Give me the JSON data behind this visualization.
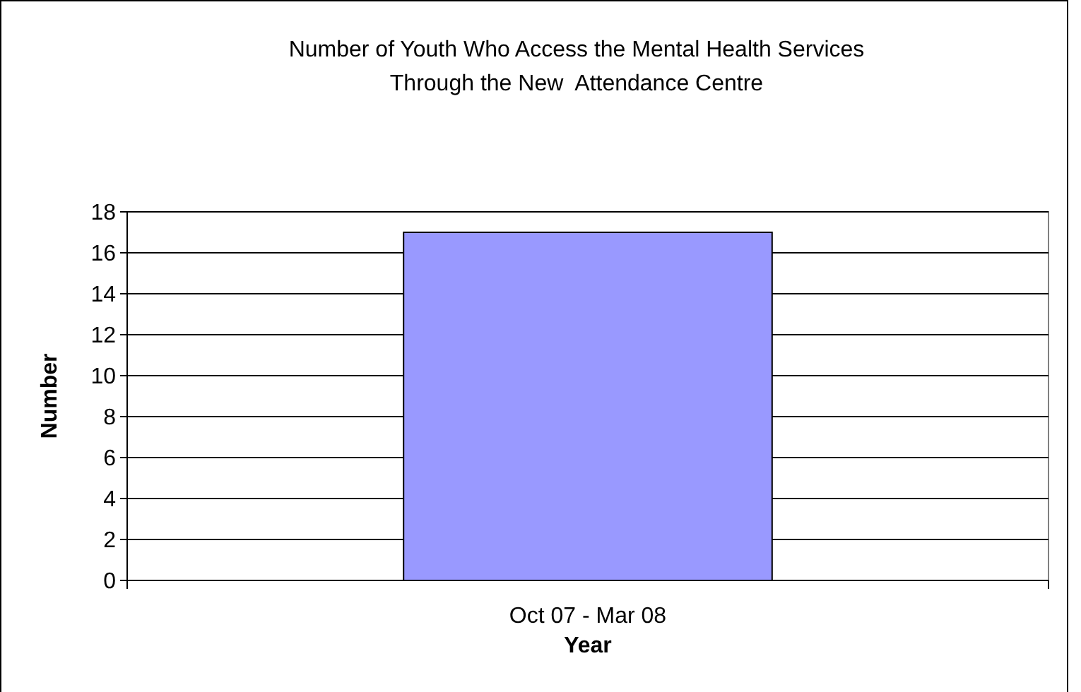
{
  "chart_data": {
    "type": "bar",
    "title": "Number of Youth Who Access the Mental Health Services\nThrough the New  Attendance Centre",
    "xlabel": "Year",
    "ylabel": "Number",
    "categories": [
      "Oct 07 - Mar 08"
    ],
    "values": [
      17
    ],
    "color": "#9999ff",
    "ylim": [
      0,
      18
    ],
    "yticks": [
      0,
      2,
      4,
      6,
      8,
      10,
      12,
      14,
      16,
      18
    ],
    "grid": "y"
  }
}
